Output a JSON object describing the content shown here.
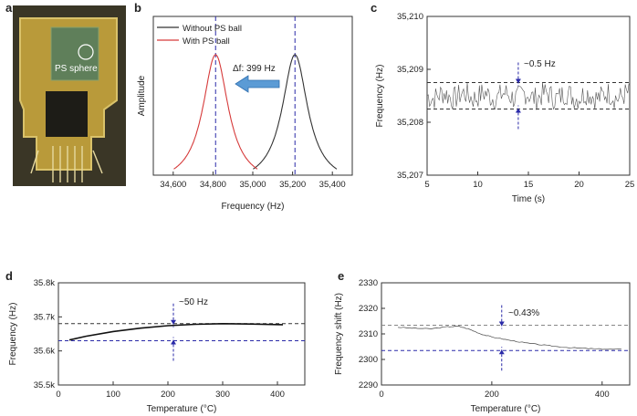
{
  "panels": {
    "a": {
      "letter": "a",
      "photo_label": "PS sphere"
    },
    "b": {
      "letter": "b"
    },
    "c": {
      "letter": "c"
    },
    "d": {
      "letter": "d"
    },
    "e": {
      "letter": "e"
    }
  },
  "colors": {
    "series_black": "#333333",
    "series_red": "#d63a3a",
    "guide_blue": "#2a2aa8",
    "arrow_fill": "#5b9bd5",
    "chip_bg": "#3c3a2a"
  },
  "chart_data": [
    {
      "id": "b",
      "type": "line",
      "title": "",
      "xlabel": "Frequency (Hz)",
      "ylabel": "Amplitude",
      "xlim": [
        34500,
        35500
      ],
      "x_ticks": [
        34600,
        34800,
        35000,
        35200,
        35400
      ],
      "x_tick_labels": [
        "34,600",
        "34,800",
        "35,000",
        "35,200",
        "35,400"
      ],
      "y_ticks": [],
      "series": [
        {
          "name": "Without PS ball",
          "color": "#333333",
          "center": 35212,
          "width": 78
        },
        {
          "name": "With PS ball",
          "color": "#d63a3a",
          "center": 34813,
          "width": 78
        }
      ],
      "legend": "top-left",
      "annotation": "Δf: 399 Hz",
      "shift_hz": 399
    },
    {
      "id": "c",
      "type": "line",
      "xlabel": "Time (s)",
      "ylabel": "Frequency (Hz)",
      "xlim": [
        5,
        25
      ],
      "ylim": [
        35207,
        35210
      ],
      "x_ticks": [
        5,
        10,
        15,
        20,
        25
      ],
      "x_tick_labels": [
        "5",
        "10",
        "15",
        "20",
        "25"
      ],
      "y_ticks": [
        35207,
        35208,
        35209,
        35210
      ],
      "y_tick_labels": [
        "35,207",
        "35,208",
        "35,209",
        "35,210"
      ],
      "series": [
        {
          "name": "frequency",
          "color": "#555555",
          "mean": 35208.5,
          "band": [
            35208.25,
            35208.75
          ]
        }
      ],
      "annotation": "~0.5 Hz",
      "band_lines": [
        35208.25,
        35208.75
      ]
    },
    {
      "id": "d",
      "type": "line",
      "xlabel": "Temperature (°C)",
      "ylabel": "Frequency (Hz)",
      "xlim": [
        0,
        450
      ],
      "ylim": [
        35500,
        35800
      ],
      "x_ticks": [
        0,
        100,
        200,
        300,
        400
      ],
      "x_tick_labels": [
        "0",
        "100",
        "200",
        "300",
        "400"
      ],
      "y_ticks": [
        35500,
        35600,
        35700,
        35800
      ],
      "y_tick_labels": [
        "35.5k",
        "35.6k",
        "35.7k",
        "35.8k"
      ],
      "series": [
        {
          "name": "frequency",
          "color": "#111111",
          "x": [
            20,
            50,
            100,
            150,
            200,
            250,
            300,
            350,
            410
          ],
          "y": [
            35632,
            35643,
            35657,
            35667,
            35674,
            35678,
            35680,
            35679,
            35677
          ]
        }
      ],
      "annotation": "~50 Hz",
      "band_lines": [
        35630,
        35680
      ]
    },
    {
      "id": "e",
      "type": "line",
      "xlabel": "Temperature (°C)",
      "ylabel": "Frequency shift (Hz)",
      "xlim": [
        0,
        450
      ],
      "ylim": [
        2290,
        2330
      ],
      "x_ticks": [
        0,
        200,
        400
      ],
      "x_tick_labels": [
        "0",
        "200",
        "400"
      ],
      "y_ticks": [
        2290,
        2300,
        2310,
        2320,
        2330
      ],
      "y_tick_labels": [
        "2290",
        "2300",
        "2310",
        "2320",
        "2330"
      ],
      "series": [
        {
          "name": "frequency shift",
          "color": "#444444",
          "x": [
            30,
            60,
            90,
            120,
            140,
            160,
            180,
            200,
            230,
            260,
            290,
            320,
            350,
            380,
            410,
            440
          ],
          "y": [
            2312.6,
            2312.2,
            2312.0,
            2312.8,
            2313.0,
            2311.8,
            2310.0,
            2308.8,
            2307.6,
            2306.5,
            2305.7,
            2305.0,
            2304.5,
            2304.2,
            2304.0,
            2303.9
          ]
        }
      ],
      "annotation": "~0.43%",
      "band_lines": [
        2303.5,
        2313.4
      ]
    }
  ]
}
